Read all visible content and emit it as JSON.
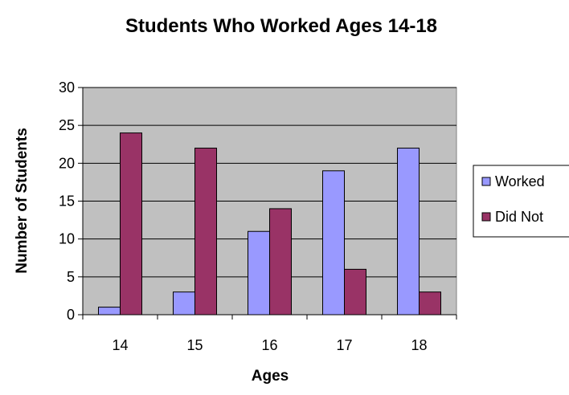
{
  "chart_data": {
    "type": "bar",
    "title": "Students Who Worked Ages 14-18",
    "xlabel": "Ages",
    "ylabel": "Number of Students",
    "categories": [
      "14",
      "15",
      "16",
      "17",
      "18"
    ],
    "series": [
      {
        "name": "Worked",
        "values": [
          1,
          3,
          11,
          19,
          22
        ],
        "color": "#9999ff"
      },
      {
        "name": "Did Not",
        "values": [
          24,
          22,
          14,
          6,
          3
        ],
        "color": "#993366"
      }
    ],
    "ylim": [
      0,
      30
    ],
    "yticks": [
      "0",
      "5",
      "10",
      "15",
      "20",
      "25",
      "30"
    ],
    "grid": true,
    "plot_background": "#c0c0c0",
    "legend_position": "right"
  }
}
